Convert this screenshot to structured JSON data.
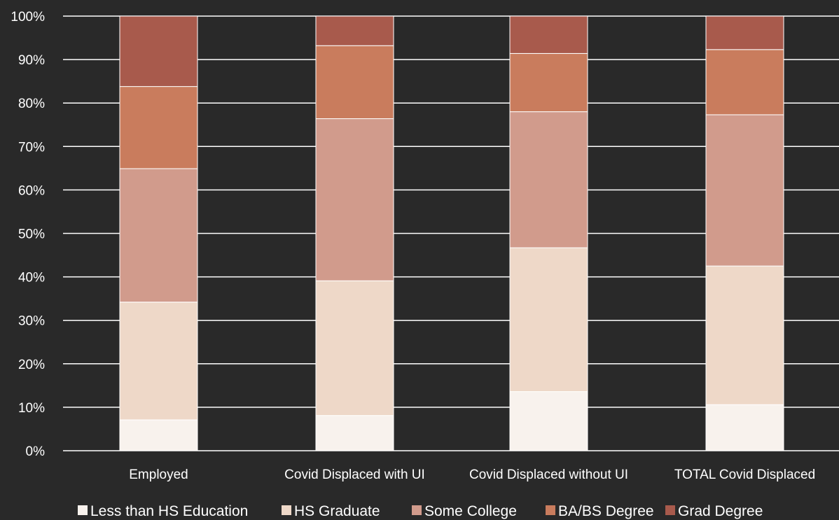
{
  "chart_data": {
    "type": "bar",
    "stacked": true,
    "categories": [
      "Employed",
      "Covid Displaced with UI",
      "Covid Displaced without UI",
      "TOTAL Covid Displaced"
    ],
    "series": [
      {
        "name": "Less than HS Education",
        "color": "#f8f2ed",
        "values": [
          7.1,
          8.1,
          13.6,
          10.6
        ]
      },
      {
        "name": "HS Graduate",
        "color": "#eed8c8",
        "values": [
          27.1,
          31.0,
          33.1,
          31.9
        ]
      },
      {
        "name": "Some College",
        "color": "#d19b8c",
        "values": [
          30.7,
          37.3,
          31.3,
          34.8
        ]
      },
      {
        "name": "BA/BS Degree",
        "color": "#c97c5d",
        "values": [
          18.9,
          16.8,
          13.4,
          15.0
        ]
      },
      {
        "name": "Grad Degree",
        "color": "#a85a4c",
        "values": [
          16.2,
          6.8,
          8.6,
          7.7
        ]
      }
    ],
    "y_ticks": [
      "0%",
      "10%",
      "20%",
      "30%",
      "40%",
      "50%",
      "60%",
      "70%",
      "80%",
      "90%",
      "100%"
    ],
    "ylim": [
      0,
      100
    ],
    "grid": true,
    "legend_position": "bottom",
    "title": "",
    "xlabel": "",
    "ylabel": ""
  }
}
